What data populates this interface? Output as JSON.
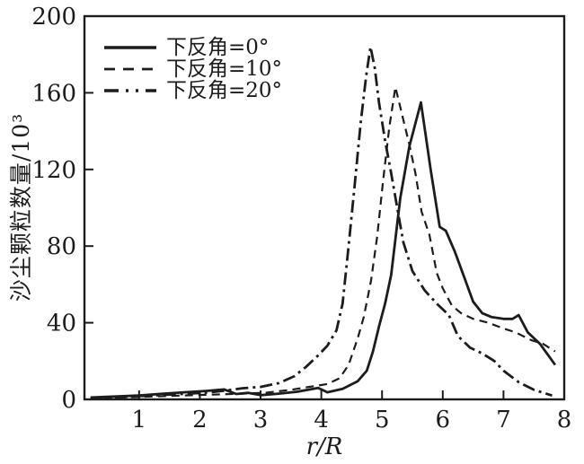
{
  "figure": {
    "background": "#ffffff"
  },
  "chart_data": {
    "type": "line",
    "title": "",
    "xlabel": "r/R",
    "ylabel": "沙尘颗粒数量/10³",
    "xlim": [
      0.1,
      8
    ],
    "ylim": [
      0,
      200
    ],
    "xticks": [
      1,
      2,
      3,
      4,
      5,
      6,
      7,
      8
    ],
    "yticks": [
      0,
      40,
      80,
      120,
      160,
      200
    ],
    "grid": false,
    "legend_position": "upper-left-inside",
    "color": "#1c1c1c",
    "series": [
      {
        "name": "下反角=0°",
        "style": "solid",
        "width": 2.8,
        "dash": "",
        "legend_dash": "",
        "points": [
          [
            0.2,
            1
          ],
          [
            0.6,
            1.5
          ],
          [
            1.0,
            2
          ],
          [
            1.4,
            3
          ],
          [
            1.8,
            3.8
          ],
          [
            2.1,
            4.4
          ],
          [
            2.4,
            5.2
          ],
          [
            2.6,
            2.8
          ],
          [
            2.8,
            3.4
          ],
          [
            3.0,
            2.2
          ],
          [
            3.3,
            3
          ],
          [
            3.6,
            4
          ],
          [
            3.95,
            6
          ],
          [
            4.1,
            3.7
          ],
          [
            4.35,
            5.5
          ],
          [
            4.6,
            9.5
          ],
          [
            4.75,
            15
          ],
          [
            4.85,
            25
          ],
          [
            4.95,
            38
          ],
          [
            5.05,
            50
          ],
          [
            5.15,
            65
          ],
          [
            5.3,
            105
          ],
          [
            5.45,
            132
          ],
          [
            5.64,
            155
          ],
          [
            5.8,
            120
          ],
          [
            5.95,
            90
          ],
          [
            6.05,
            88
          ],
          [
            6.2,
            77
          ],
          [
            6.35,
            64
          ],
          [
            6.5,
            51
          ],
          [
            6.65,
            45
          ],
          [
            6.8,
            43
          ],
          [
            7.0,
            42
          ],
          [
            7.15,
            42
          ],
          [
            7.25,
            44
          ],
          [
            7.4,
            35
          ],
          [
            7.6,
            29
          ],
          [
            7.85,
            18
          ]
        ]
      },
      {
        "name": "下反角=10°",
        "style": "dashed",
        "width": 2.2,
        "dash": "9 6",
        "legend_dash": "12 9",
        "points": [
          [
            0.2,
            0.5
          ],
          [
            0.7,
            1
          ],
          [
            1.2,
            1.5
          ],
          [
            1.7,
            2
          ],
          [
            2.2,
            2.5
          ],
          [
            2.7,
            3
          ],
          [
            3.1,
            3.5
          ],
          [
            3.5,
            5
          ],
          [
            3.8,
            6.5
          ],
          [
            4.1,
            8
          ],
          [
            4.3,
            11
          ],
          [
            4.45,
            18
          ],
          [
            4.6,
            32
          ],
          [
            4.7,
            43
          ],
          [
            4.82,
            62
          ],
          [
            4.92,
            85
          ],
          [
            5.02,
            115
          ],
          [
            5.12,
            142
          ],
          [
            5.22,
            163
          ],
          [
            5.32,
            150
          ],
          [
            5.45,
            133
          ],
          [
            5.55,
            118
          ],
          [
            5.65,
            98
          ],
          [
            5.78,
            86
          ],
          [
            5.9,
            66
          ],
          [
            6.0,
            58
          ],
          [
            6.15,
            49
          ],
          [
            6.3,
            45
          ],
          [
            6.5,
            42
          ],
          [
            6.75,
            40
          ],
          [
            7.0,
            37
          ],
          [
            7.2,
            35
          ],
          [
            7.45,
            31
          ],
          [
            7.65,
            29
          ],
          [
            7.85,
            25
          ]
        ]
      },
      {
        "name": "下反角=20°",
        "style": "dashdot",
        "width": 2.8,
        "dash": "14 5 3 5",
        "legend_dash": "16 8 3 8 3 8",
        "points": [
          [
            0.2,
            0.5
          ],
          [
            0.7,
            1.2
          ],
          [
            1.2,
            2
          ],
          [
            1.7,
            2.8
          ],
          [
            2.1,
            3.5
          ],
          [
            2.4,
            4.5
          ],
          [
            2.7,
            5.8
          ],
          [
            3.0,
            6.5
          ],
          [
            3.3,
            8.5
          ],
          [
            3.55,
            12
          ],
          [
            3.75,
            17
          ],
          [
            3.95,
            23
          ],
          [
            4.1,
            28
          ],
          [
            4.25,
            36
          ],
          [
            4.35,
            50
          ],
          [
            4.45,
            80
          ],
          [
            4.55,
            112
          ],
          [
            4.65,
            145
          ],
          [
            4.74,
            169
          ],
          [
            4.81,
            184
          ],
          [
            4.88,
            173
          ],
          [
            4.95,
            155
          ],
          [
            5.05,
            135
          ],
          [
            5.15,
            118
          ],
          [
            5.25,
            100
          ],
          [
            5.35,
            82
          ],
          [
            5.5,
            67
          ],
          [
            5.7,
            57
          ],
          [
            5.9,
            50
          ],
          [
            6.1,
            44
          ],
          [
            6.25,
            33
          ],
          [
            6.45,
            27
          ],
          [
            6.65,
            24
          ],
          [
            6.85,
            20
          ],
          [
            7.0,
            15
          ],
          [
            7.25,
            9
          ],
          [
            7.5,
            5
          ],
          [
            7.8,
            2
          ]
        ]
      }
    ]
  }
}
